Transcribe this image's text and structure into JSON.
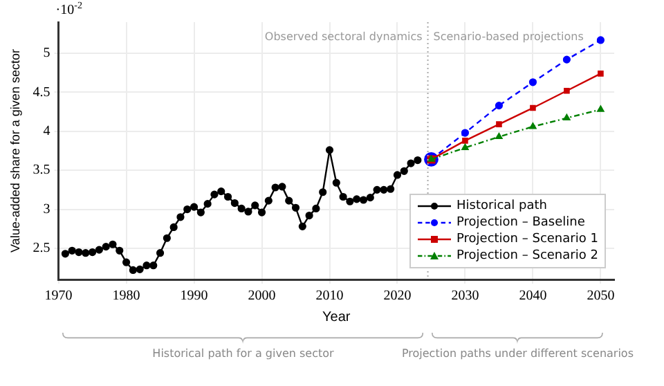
{
  "chart_data": {
    "type": "line",
    "xlabel": "Year",
    "ylabel": "Value-added share for a given sector",
    "xlim": [
      1970,
      2052
    ],
    "xticks": [
      1970,
      1980,
      1990,
      2000,
      2010,
      2020,
      2030,
      2040,
      2050
    ],
    "ylim": [
      2.1,
      5.4
    ],
    "yticks": [
      2.5,
      3,
      3.5,
      4,
      4.5,
      5
    ],
    "grid": true,
    "legend": "bottom right",
    "ref_lines": [
      {
        "axis": "x",
        "value": 2024.5,
        "color": "#aaaaaa",
        "line_style": "dotted"
      }
    ],
    "annotations": [
      "·10$^{-2}$",
      "Observed sectoral dynamics",
      "Scenario-based projections",
      "Historical path for a given sector",
      "Projection paths under different scenarios"
    ],
    "series": [
      {
        "name": "Historical path",
        "color": "#000000",
        "marker": "circle",
        "line_style": "solid",
        "x": [
          1971,
          1972,
          1973,
          1974,
          1975,
          1976,
          1977,
          1978,
          1979,
          1980,
          1981,
          1982,
          1983,
          1984,
          1985,
          1986,
          1987,
          1988,
          1989,
          1990,
          1991,
          1992,
          1993,
          1994,
          1995,
          1996,
          1997,
          1998,
          1999,
          2000,
          2001,
          2002,
          2003,
          2004,
          2005,
          2006,
          2007,
          2008,
          2009,
          2010,
          2011,
          2012,
          2013,
          2014,
          2015,
          2016,
          2017,
          2018,
          2019,
          2020,
          2021,
          2022,
          2023
        ],
        "values": [
          2.43,
          2.47,
          2.45,
          2.44,
          2.45,
          2.48,
          2.52,
          2.55,
          2.47,
          2.32,
          2.22,
          2.23,
          2.28,
          2.28,
          2.44,
          2.63,
          2.77,
          2.9,
          3.0,
          3.03,
          2.96,
          3.07,
          3.19,
          3.23,
          3.16,
          3.08,
          3.01,
          2.97,
          3.05,
          2.96,
          3.11,
          3.28,
          3.29,
          3.11,
          3.02,
          2.78,
          2.92,
          3.01,
          3.22,
          3.76,
          3.34,
          3.16,
          3.1,
          3.13,
          3.12,
          3.15,
          3.25,
          3.25,
          3.26,
          3.44,
          3.49,
          3.59,
          3.63
        ]
      },
      {
        "name": "Projection – Baseline",
        "color": "#0000ff",
        "marker": "circle",
        "line_style": "dashed",
        "x": [
          2025,
          2030,
          2035,
          2040,
          2045,
          2050
        ],
        "values": [
          3.64,
          3.98,
          4.33,
          4.63,
          4.92,
          5.17
        ]
      },
      {
        "name": "Projection – Scenario 1",
        "color": "#cc0000",
        "marker": "square",
        "line_style": "solid",
        "x": [
          2025,
          2030,
          2035,
          2040,
          2045,
          2050
        ],
        "values": [
          3.64,
          3.88,
          4.09,
          4.3,
          4.52,
          4.74
        ]
      },
      {
        "name": "Projection – Scenario 2",
        "color": "#008000",
        "marker": "triangle",
        "line_style": "dotted",
        "x": [
          2025,
          2030,
          2035,
          2040,
          2045,
          2050
        ],
        "values": [
          3.64,
          3.79,
          3.93,
          4.06,
          4.17,
          4.28
        ]
      }
    ]
  }
}
